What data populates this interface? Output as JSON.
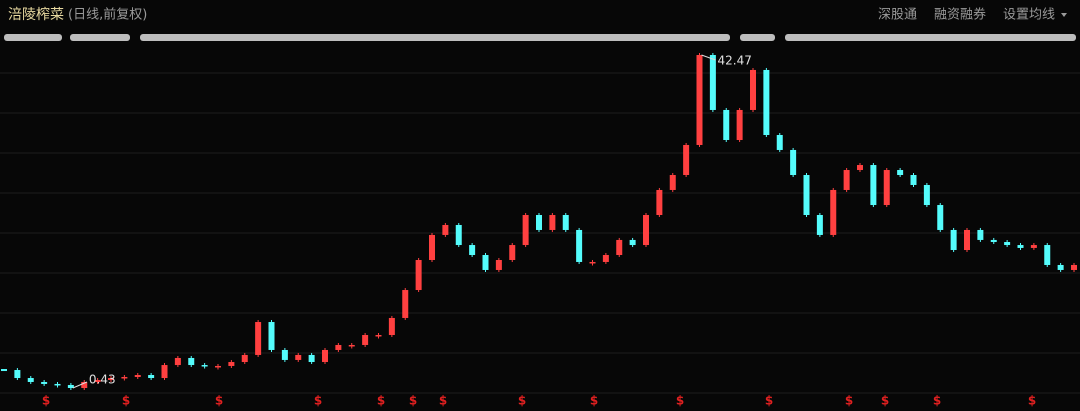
{
  "header": {
    "title": "涪陵榨菜",
    "subtitle": "(日线,前复权)",
    "buttons": [
      "深股通",
      "融资融券",
      "设置均线"
    ]
  },
  "chart_data": {
    "type": "candlestick",
    "values": [
      2.7,
      1.69,
      1.19,
      0.94,
      0.81,
      0.43,
      1.19,
      1.44,
      1.69,
      1.82,
      2.07,
      1.69,
      3.33,
      4.22,
      3.33,
      3.21,
      3.21,
      3.71,
      4.6,
      8.76,
      5.23,
      3.97,
      4.6,
      3.71,
      5.23,
      5.86,
      5.86,
      7.12,
      7.12,
      9.27,
      12.8,
      16.59,
      19.75,
      21.01,
      18.48,
      17.22,
      15.33,
      16.59,
      18.48,
      22.27,
      20.38,
      22.27,
      20.38,
      16.34,
      16.34,
      17.22,
      19.12,
      18.48,
      22.27,
      25.43,
      27.32,
      31.11,
      42.47,
      35.53,
      31.74,
      35.53,
      40.58,
      32.37,
      30.48,
      27.32,
      22.27,
      19.75,
      25.43,
      27.95,
      28.58,
      23.53,
      27.95,
      27.32,
      26.06,
      23.53,
      20.38,
      17.85,
      20.38,
      19.12,
      18.86,
      18.48,
      18.11,
      18.48,
      15.96,
      15.33,
      15.96
    ],
    "high": 42.47,
    "low": 0.43,
    "up_color": "#ff4040",
    "down_color": "#54fcfc",
    "event_marker": "$"
  }
}
